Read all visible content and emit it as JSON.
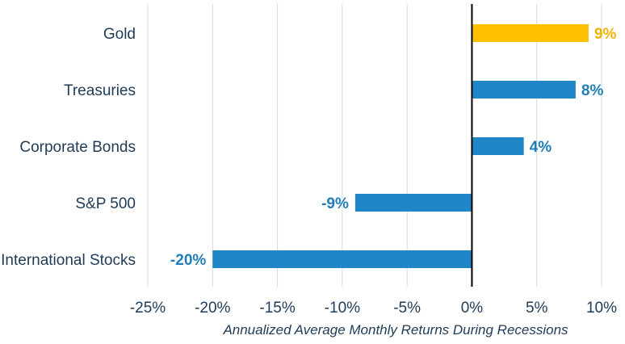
{
  "chart_data": {
    "type": "bar",
    "orientation": "horizontal",
    "categories": [
      "Gold",
      "Treasuries",
      "Corporate Bonds",
      "S&P 500",
      "International Stocks"
    ],
    "values": [
      9,
      8,
      4,
      -9,
      -20
    ],
    "value_labels": [
      "9%",
      "8%",
      "4%",
      "-9%",
      "-20%"
    ],
    "colors": [
      "#FFC000",
      "#1F87C8",
      "#1F87C8",
      "#1F87C8",
      "#1F87C8"
    ],
    "label_colors": [
      "#F0B400",
      "#1F7EB8",
      "#1F7EB8",
      "#1F7EB8",
      "#1F7EB8"
    ],
    "xlim": [
      -25,
      10
    ],
    "xticks": [
      -25,
      -20,
      -15,
      -10,
      -5,
      0,
      5,
      10
    ],
    "xtick_labels": [
      "-25%",
      "-20%",
      "-15%",
      "-10%",
      "-5%",
      "0%",
      "5%",
      "10%"
    ],
    "xlabel": "Annualized Average Monthly Returns During Recessions",
    "title": "",
    "grid": true,
    "gridline_color": "#D9D9D9",
    "zero_line_color": "#000000"
  }
}
